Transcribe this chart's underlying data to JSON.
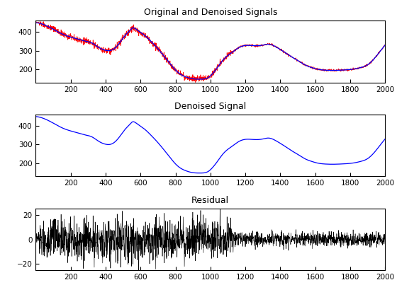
{
  "title1": "Original and Denoised Signals",
  "title2": "Denoised Signal",
  "title3": "Residual",
  "xlim": [
    0,
    2000
  ],
  "ylim1": [
    130,
    460
  ],
  "ylim2": [
    130,
    460
  ],
  "ylim3": [
    -25,
    25
  ],
  "xticks": [
    200,
    400,
    600,
    800,
    1000,
    1200,
    1400,
    1600,
    1800,
    2000
  ],
  "yticks1": [
    200,
    300,
    400
  ],
  "yticks2": [
    200,
    300,
    400
  ],
  "yticks3": [
    -20,
    0,
    20
  ],
  "color_noisy": "#ff0000",
  "color_denoised": "#0000ff",
  "color_residual": "#000000",
  "figsize": [
    5.6,
    4.2
  ],
  "dpi": 100
}
